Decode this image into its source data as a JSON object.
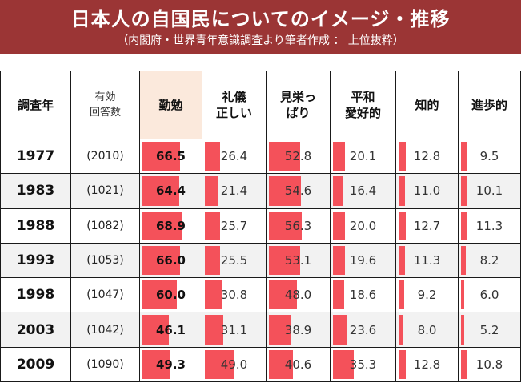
{
  "header": {
    "title": "日本人の自国民についてのイメージ・推移",
    "subtitle": "（内閣府・世界青年意識調査より筆者作成 ： 上位抜粋）",
    "bg_color": "#9b3535"
  },
  "colors": {
    "bar": "#f4515a",
    "highlight_header": "#fbe9dc"
  },
  "chart_data": {
    "type": "table",
    "title": "日本人の自国民についてのイメージ・推移",
    "subtitle": "（内閣府・世界青年意識調査より筆者作成 ： 上位抜粋）",
    "columns": {
      "year": "調査年",
      "respondents_line1": "有効",
      "respondents_line2": "回答数",
      "c1": "勤勉",
      "c2_line1": "礼儀",
      "c2_line2": "正しい",
      "c3_line1": "見栄っ",
      "c3_line2": "ぱり",
      "c4_line1": "平和",
      "c4_line2": "愛好的",
      "c5": "知的",
      "c6": "進歩的"
    },
    "highlight_column": "勤勉",
    "bar_max": 100,
    "rows": [
      {
        "year": "1977",
        "respondents": "(2010)",
        "values": [
          "66.5",
          "26.4",
          "52.8",
          "20.1",
          "12.8",
          "9.5"
        ]
      },
      {
        "year": "1983",
        "respondents": "(1021)",
        "values": [
          "64.4",
          "21.4",
          "54.6",
          "16.4",
          "11.0",
          "10.1"
        ]
      },
      {
        "year": "1988",
        "respondents": "(1082)",
        "values": [
          "68.9",
          "25.7",
          "56.3",
          "20.0",
          "12.7",
          "11.3"
        ]
      },
      {
        "year": "1993",
        "respondents": "(1053)",
        "values": [
          "66.0",
          "25.5",
          "53.1",
          "19.6",
          "11.3",
          "8.2"
        ]
      },
      {
        "year": "1998",
        "respondents": "(1047)",
        "values": [
          "60.0",
          "30.8",
          "48.0",
          "18.6",
          "9.2",
          "6.0"
        ]
      },
      {
        "year": "2003",
        "respondents": "(1042)",
        "values": [
          "46.1",
          "31.1",
          "38.9",
          "23.6",
          "8.0",
          "5.2"
        ]
      },
      {
        "year": "2009",
        "respondents": "(1090)",
        "values": [
          "49.3",
          "49.0",
          "40.6",
          "35.3",
          "12.8",
          "10.8"
        ]
      }
    ]
  }
}
